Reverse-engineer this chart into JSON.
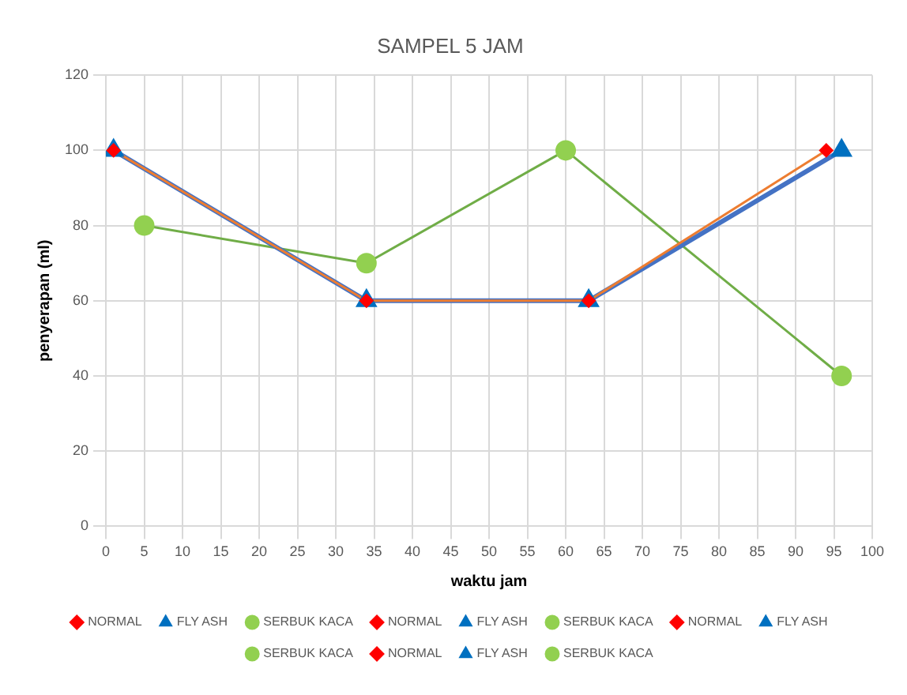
{
  "chart_data": {
    "type": "scatter",
    "title": "SAMPEL 5 JAM",
    "xlabel": "waktu jam",
    "ylabel": "penyerapan (ml)",
    "xlim": [
      0,
      100
    ],
    "xticks": [
      0,
      5,
      10,
      15,
      20,
      25,
      30,
      35,
      40,
      45,
      50,
      55,
      60,
      65,
      70,
      75,
      80,
      85,
      90,
      95,
      100
    ],
    "ylim": [
      0,
      120
    ],
    "yticks": [
      0,
      20,
      40,
      60,
      80,
      100,
      120
    ],
    "grid": true,
    "legend": "bottom",
    "series": [
      {
        "type": "line",
        "color": "#ed7d31",
        "marker": "none",
        "x": [
          1,
          34,
          63,
          94
        ],
        "values": [
          100,
          60,
          60,
          100
        ]
      },
      {
        "type": "line",
        "color": "#4472c4",
        "marker": "none",
        "x": [
          1,
          34,
          63,
          96
        ],
        "values": [
          100,
          60,
          60,
          100
        ]
      },
      {
        "type": "line",
        "color": "#70ad47",
        "marker": "none",
        "x": [
          5,
          34,
          60,
          96
        ],
        "values": [
          80,
          70,
          100,
          40
        ]
      },
      {
        "name": "NORMAL",
        "color": "#ff0000",
        "marker": "diamond",
        "x": [
          1
        ],
        "values": [
          100
        ]
      },
      {
        "name": "FLY ASH",
        "color": "#0070c0",
        "marker": "triangle",
        "x": [
          1
        ],
        "values": [
          100
        ]
      },
      {
        "name": "SERBUK KACA",
        "color": "#92d050",
        "marker": "circle",
        "x": [
          5
        ],
        "values": [
          80
        ]
      },
      {
        "name": "NORMAL",
        "color": "#ff0000",
        "marker": "diamond",
        "x": [
          34
        ],
        "values": [
          60
        ]
      },
      {
        "name": "FLY ASH",
        "color": "#0070c0",
        "marker": "triangle",
        "x": [
          34
        ],
        "values": [
          60
        ]
      },
      {
        "name": "SERBUK KACA",
        "color": "#92d050",
        "marker": "circle",
        "x": [
          34
        ],
        "values": [
          70
        ]
      },
      {
        "name": "NORMAL",
        "color": "#ff0000",
        "marker": "diamond",
        "x": [
          63
        ],
        "values": [
          60
        ]
      },
      {
        "name": "FLY ASH",
        "color": "#0070c0",
        "marker": "triangle",
        "x": [
          63
        ],
        "values": [
          60
        ]
      },
      {
        "name": "SERBUK KACA",
        "color": "#92d050",
        "marker": "circle",
        "x": [
          60
        ],
        "values": [
          100
        ]
      },
      {
        "name": "NORMAL",
        "color": "#ff0000",
        "marker": "diamond",
        "x": [
          94
        ],
        "values": [
          100
        ]
      },
      {
        "name": "FLY ASH",
        "color": "#0070c0",
        "marker": "triangle",
        "x": [
          96
        ],
        "values": [
          100
        ]
      },
      {
        "name": "SERBUK KACA",
        "color": "#92d050",
        "marker": "circle",
        "x": [
          96
        ],
        "values": [
          40
        ]
      }
    ]
  }
}
